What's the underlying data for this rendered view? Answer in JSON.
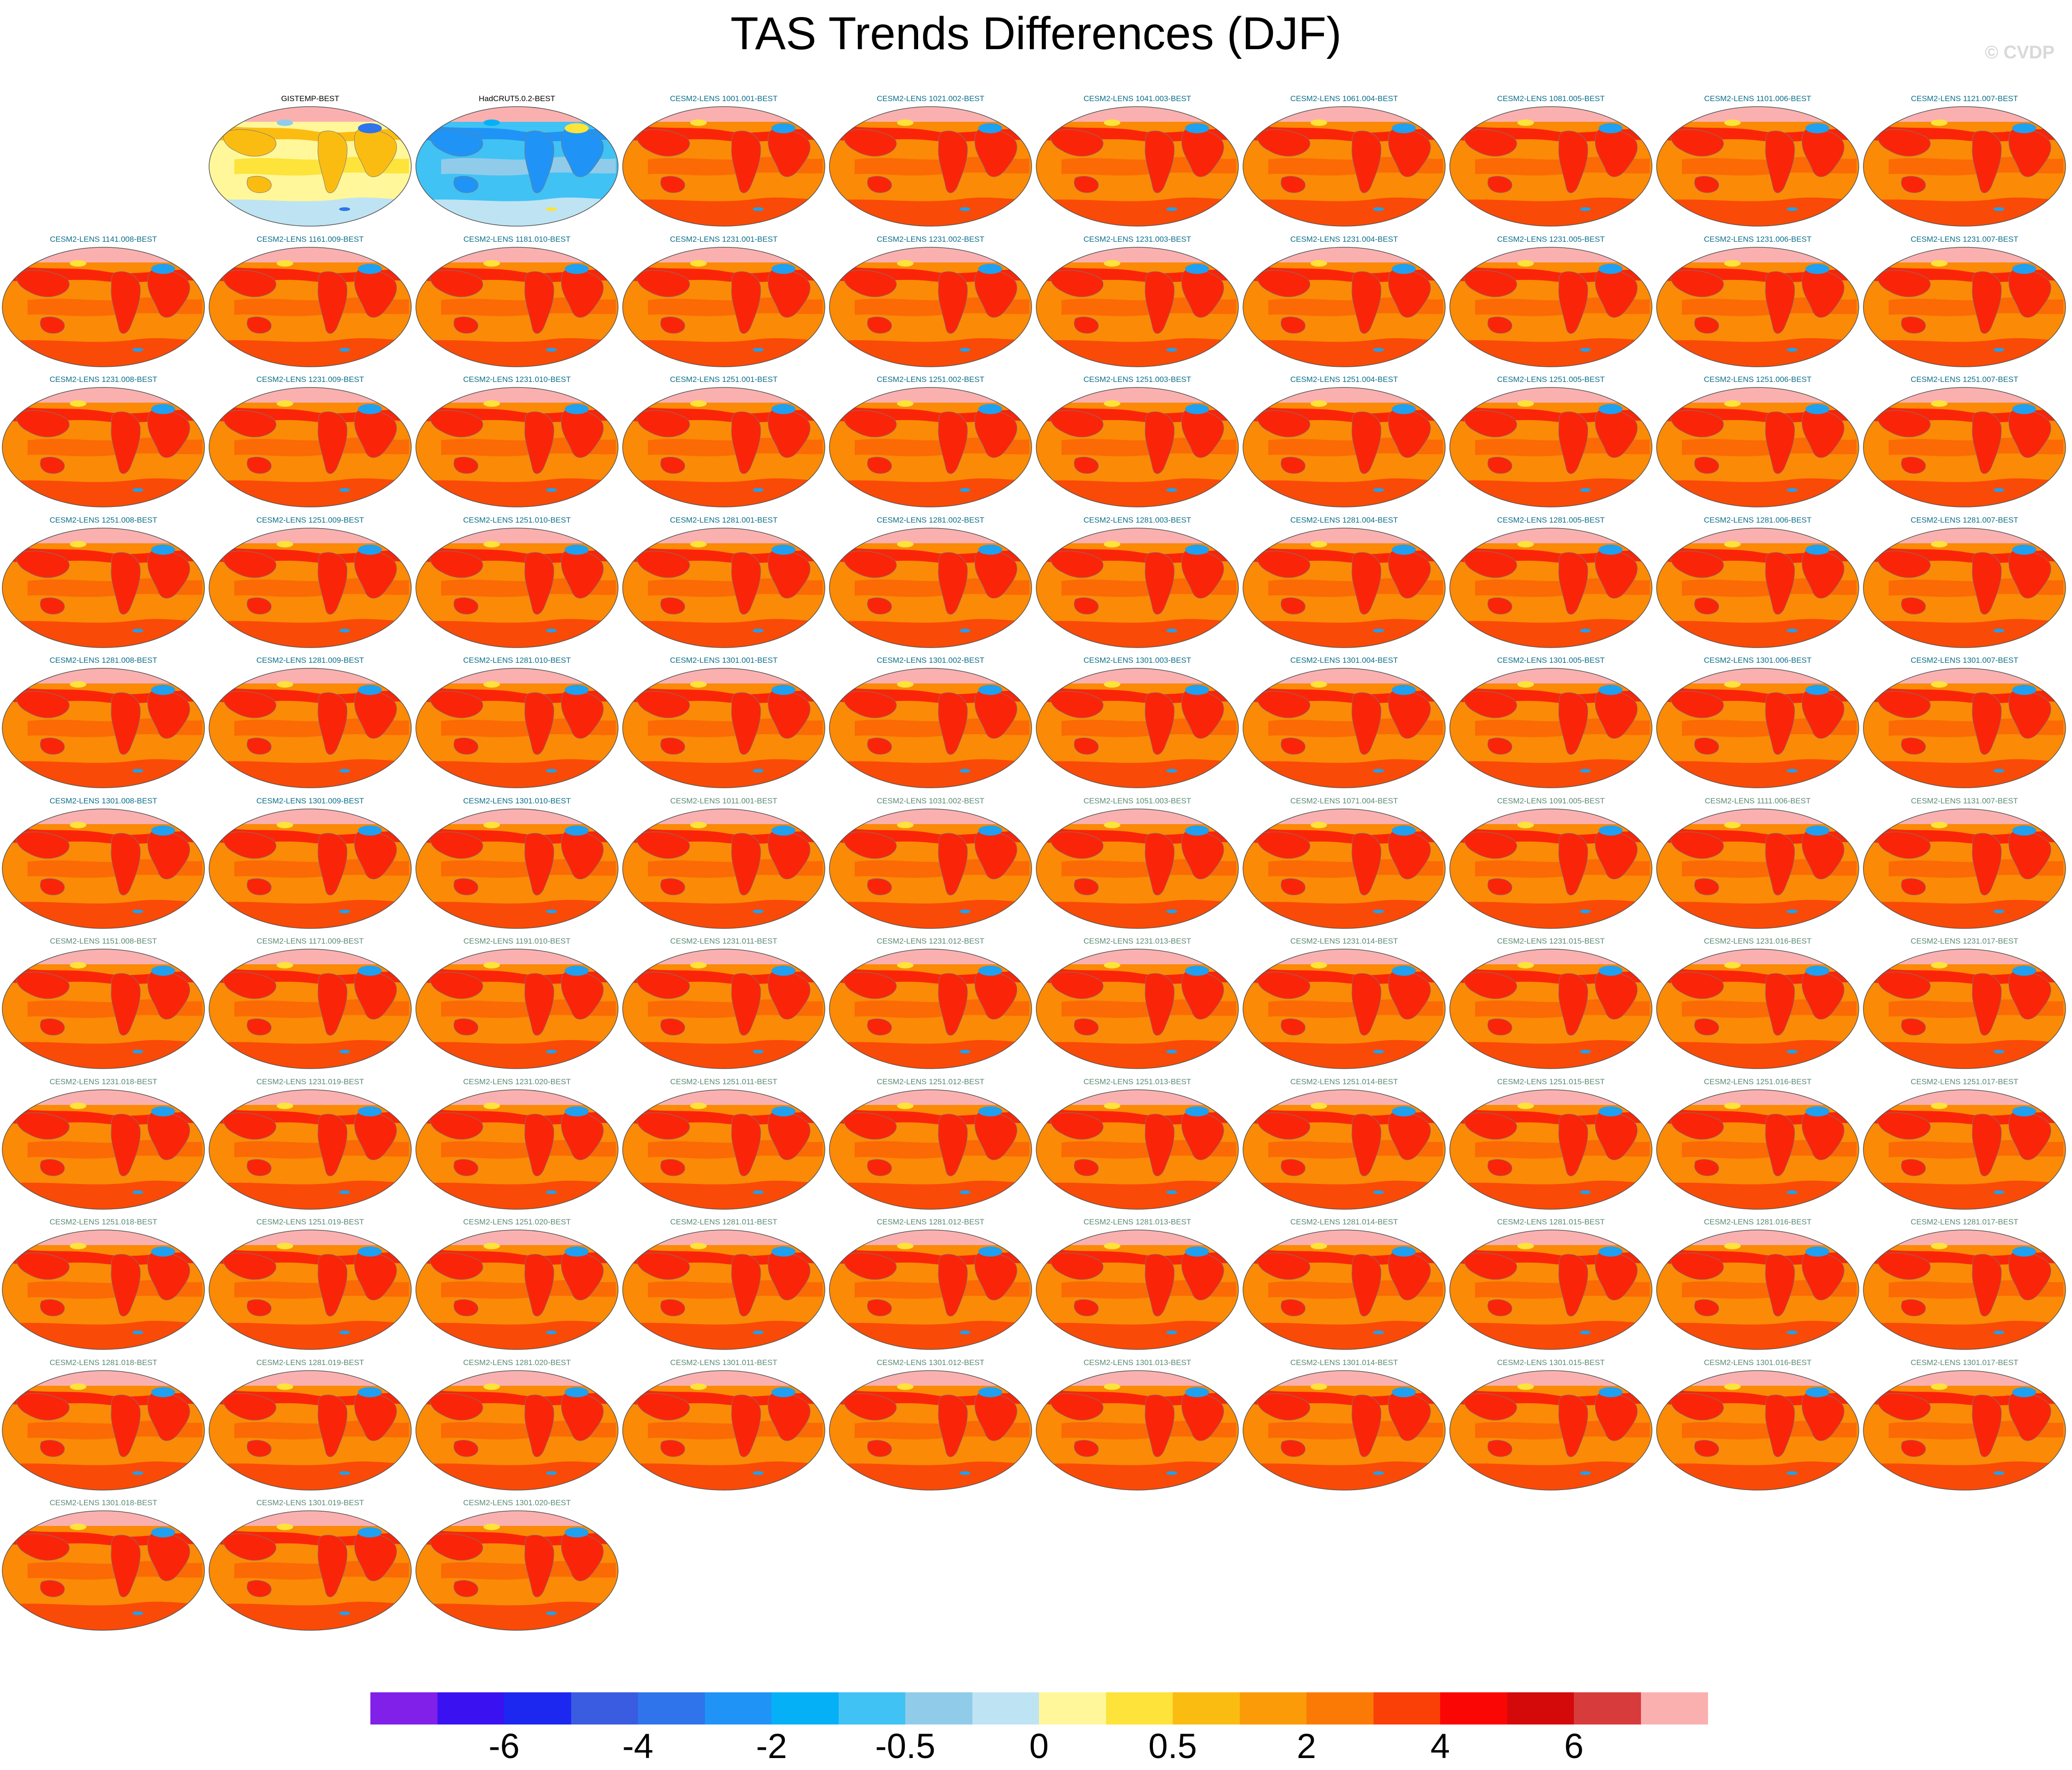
{
  "title": "TAS Trends Differences (DJF)",
  "copyright": "© CVDP",
  "colorbar": {
    "colors": [
      "#8020e8",
      "#3a12f2",
      "#1c28f0",
      "#3a5ce0",
      "#2f74ea",
      "#1f94f6",
      "#06b0f6",
      "#40c2f4",
      "#90ccea",
      "#bee3f3",
      "#fff799",
      "#fde33a",
      "#fbbc12",
      "#fb9b08",
      "#fb7a05",
      "#fa4007",
      "#fa0605",
      "#d40a0a",
      "#d83b3b",
      "#fbb0b0"
    ],
    "tick_labels": [
      "-6",
      "-4",
      "-2",
      "-0.5",
      "0",
      "0.5",
      "2",
      "4",
      "6"
    ]
  },
  "panels": [
    {
      "label": "GISTEMP-BEST",
      "style": "obs",
      "palette": "mixed"
    },
    {
      "label": "HadCRUT5.0.2-BEST",
      "style": "obs",
      "palette": "cool"
    },
    {
      "label": "CESM2-LENS 1001.001-BEST",
      "style": "teal",
      "palette": "warm"
    },
    {
      "label": "CESM2-LENS 1021.002-BEST",
      "style": "teal",
      "palette": "warm"
    },
    {
      "label": "CESM2-LENS 1041.003-BEST",
      "style": "teal",
      "palette": "warm"
    },
    {
      "label": "CESM2-LENS 1061.004-BEST",
      "style": "teal",
      "palette": "warm"
    },
    {
      "label": "CESM2-LENS 1081.005-BEST",
      "style": "teal",
      "palette": "warm"
    },
    {
      "label": "CESM2-LENS 1101.006-BEST",
      "style": "teal",
      "palette": "warm"
    },
    {
      "label": "CESM2-LENS 1121.007-BEST",
      "style": "teal",
      "palette": "warm"
    },
    {
      "label": "CESM2-LENS 1141.008-BEST",
      "style": "teal",
      "palette": "warm"
    },
    {
      "label": "CESM2-LENS 1161.009-BEST",
      "style": "teal",
      "palette": "warm"
    },
    {
      "label": "CESM2-LENS 1181.010-BEST",
      "style": "teal",
      "palette": "warm"
    },
    {
      "label": "CESM2-LENS 1231.001-BEST",
      "style": "teal",
      "palette": "warm"
    },
    {
      "label": "CESM2-LENS 1231.002-BEST",
      "style": "teal",
      "palette": "warm"
    },
    {
      "label": "CESM2-LENS 1231.003-BEST",
      "style": "teal",
      "palette": "warm"
    },
    {
      "label": "CESM2-LENS 1231.004-BEST",
      "style": "teal",
      "palette": "warm"
    },
    {
      "label": "CESM2-LENS 1231.005-BEST",
      "style": "teal",
      "palette": "warm"
    },
    {
      "label": "CESM2-LENS 1231.006-BEST",
      "style": "teal",
      "palette": "warm"
    },
    {
      "label": "CESM2-LENS 1231.007-BEST",
      "style": "teal",
      "palette": "warm"
    },
    {
      "label": "CESM2-LENS 1231.008-BEST",
      "style": "teal",
      "palette": "warm"
    },
    {
      "label": "CESM2-LENS 1231.009-BEST",
      "style": "teal",
      "palette": "warm"
    },
    {
      "label": "CESM2-LENS 1231.010-BEST",
      "style": "teal",
      "palette": "warm"
    },
    {
      "label": "CESM2-LENS 1251.001-BEST",
      "style": "teal",
      "palette": "warm"
    },
    {
      "label": "CESM2-LENS 1251.002-BEST",
      "style": "teal",
      "palette": "warm"
    },
    {
      "label": "CESM2-LENS 1251.003-BEST",
      "style": "teal",
      "palette": "warm"
    },
    {
      "label": "CESM2-LENS 1251.004-BEST",
      "style": "teal",
      "palette": "warm"
    },
    {
      "label": "CESM2-LENS 1251.005-BEST",
      "style": "teal",
      "palette": "warm"
    },
    {
      "label": "CESM2-LENS 1251.006-BEST",
      "style": "teal",
      "palette": "warm"
    },
    {
      "label": "CESM2-LENS 1251.007-BEST",
      "style": "teal",
      "palette": "warm"
    },
    {
      "label": "CESM2-LENS 1251.008-BEST",
      "style": "teal",
      "palette": "warm"
    },
    {
      "label": "CESM2-LENS 1251.009-BEST",
      "style": "teal",
      "palette": "warm"
    },
    {
      "label": "CESM2-LENS 1251.010-BEST",
      "style": "teal",
      "palette": "warm"
    },
    {
      "label": "CESM2-LENS 1281.001-BEST",
      "style": "teal",
      "palette": "warm"
    },
    {
      "label": "CESM2-LENS 1281.002-BEST",
      "style": "teal",
      "palette": "warm"
    },
    {
      "label": "CESM2-LENS 1281.003-BEST",
      "style": "teal",
      "palette": "warm"
    },
    {
      "label": "CESM2-LENS 1281.004-BEST",
      "style": "teal",
      "palette": "warm"
    },
    {
      "label": "CESM2-LENS 1281.005-BEST",
      "style": "teal",
      "palette": "warm"
    },
    {
      "label": "CESM2-LENS 1281.006-BEST",
      "style": "teal",
      "palette": "warm"
    },
    {
      "label": "CESM2-LENS 1281.007-BEST",
      "style": "teal",
      "palette": "warm"
    },
    {
      "label": "CESM2-LENS 1281.008-BEST",
      "style": "teal",
      "palette": "warm"
    },
    {
      "label": "CESM2-LENS 1281.009-BEST",
      "style": "teal",
      "palette": "warm"
    },
    {
      "label": "CESM2-LENS 1281.010-BEST",
      "style": "teal",
      "palette": "warm"
    },
    {
      "label": "CESM2-LENS 1301.001-BEST",
      "style": "teal",
      "palette": "warm"
    },
    {
      "label": "CESM2-LENS 1301.002-BEST",
      "style": "teal",
      "palette": "warm"
    },
    {
      "label": "CESM2-LENS 1301.003-BEST",
      "style": "teal",
      "palette": "warm"
    },
    {
      "label": "CESM2-LENS 1301.004-BEST",
      "style": "teal",
      "palette": "warm"
    },
    {
      "label": "CESM2-LENS 1301.005-BEST",
      "style": "teal",
      "palette": "warm"
    },
    {
      "label": "CESM2-LENS 1301.006-BEST",
      "style": "teal",
      "palette": "warm"
    },
    {
      "label": "CESM2-LENS 1301.007-BEST",
      "style": "teal",
      "palette": "warm"
    },
    {
      "label": "CESM2-LENS 1301.008-BEST",
      "style": "teal",
      "palette": "warm"
    },
    {
      "label": "CESM2-LENS 1301.009-BEST",
      "style": "teal",
      "palette": "warm"
    },
    {
      "label": "CESM2-LENS 1301.010-BEST",
      "style": "teal",
      "palette": "warm"
    },
    {
      "label": "CESM2-LENS 1011.001-BEST",
      "style": "grey",
      "palette": "warm"
    },
    {
      "label": "CESM2-LENS 1031.002-BEST",
      "style": "grey",
      "palette": "warm"
    },
    {
      "label": "CESM2-LENS 1051.003-BEST",
      "style": "grey",
      "palette": "warm"
    },
    {
      "label": "CESM2-LENS 1071.004-BEST",
      "style": "grey",
      "palette": "warm"
    },
    {
      "label": "CESM2-LENS 1091.005-BEST",
      "style": "grey",
      "palette": "warm"
    },
    {
      "label": "CESM2-LENS 1111.006-BEST",
      "style": "grey",
      "palette": "warm"
    },
    {
      "label": "CESM2-LENS 1131.007-BEST",
      "style": "grey",
      "palette": "warm"
    },
    {
      "label": "CESM2-LENS 1151.008-BEST",
      "style": "grey",
      "palette": "warm"
    },
    {
      "label": "CESM2-LENS 1171.009-BEST",
      "style": "grey",
      "palette": "warm"
    },
    {
      "label": "CESM2-LENS 1191.010-BEST",
      "style": "grey",
      "palette": "warm"
    },
    {
      "label": "CESM2-LENS 1231.011-BEST",
      "style": "grey",
      "palette": "warm"
    },
    {
      "label": "CESM2-LENS 1231.012-BEST",
      "style": "grey",
      "palette": "warm"
    },
    {
      "label": "CESM2-LENS 1231.013-BEST",
      "style": "grey",
      "palette": "warm"
    },
    {
      "label": "CESM2-LENS 1231.014-BEST",
      "style": "grey",
      "palette": "warm"
    },
    {
      "label": "CESM2-LENS 1231.015-BEST",
      "style": "grey",
      "palette": "warm"
    },
    {
      "label": "CESM2-LENS 1231.016-BEST",
      "style": "grey",
      "palette": "warm"
    },
    {
      "label": "CESM2-LENS 1231.017-BEST",
      "style": "grey",
      "palette": "warm"
    },
    {
      "label": "CESM2-LENS 1231.018-BEST",
      "style": "grey",
      "palette": "warm"
    },
    {
      "label": "CESM2-LENS 1231.019-BEST",
      "style": "grey",
      "palette": "warm"
    },
    {
      "label": "CESM2-LENS 1231.020-BEST",
      "style": "grey",
      "palette": "warm"
    },
    {
      "label": "CESM2-LENS 1251.011-BEST",
      "style": "grey",
      "palette": "warm"
    },
    {
      "label": "CESM2-LENS 1251.012-BEST",
      "style": "grey",
      "palette": "warm"
    },
    {
      "label": "CESM2-LENS 1251.013-BEST",
      "style": "grey",
      "palette": "warm"
    },
    {
      "label": "CESM2-LENS 1251.014-BEST",
      "style": "grey",
      "palette": "warm"
    },
    {
      "label": "CESM2-LENS 1251.015-BEST",
      "style": "grey",
      "palette": "warm"
    },
    {
      "label": "CESM2-LENS 1251.016-BEST",
      "style": "grey",
      "palette": "warm"
    },
    {
      "label": "CESM2-LENS 1251.017-BEST",
      "style": "grey",
      "palette": "warm"
    },
    {
      "label": "CESM2-LENS 1251.018-BEST",
      "style": "grey",
      "palette": "warm"
    },
    {
      "label": "CESM2-LENS 1251.019-BEST",
      "style": "grey",
      "palette": "warm"
    },
    {
      "label": "CESM2-LENS 1251.020-BEST",
      "style": "grey",
      "palette": "warm"
    },
    {
      "label": "CESM2-LENS 1281.011-BEST",
      "style": "grey",
      "palette": "warm"
    },
    {
      "label": "CESM2-LENS 1281.012-BEST",
      "style": "grey",
      "palette": "warm"
    },
    {
      "label": "CESM2-LENS 1281.013-BEST",
      "style": "grey",
      "palette": "warm"
    },
    {
      "label": "CESM2-LENS 1281.014-BEST",
      "style": "grey",
      "palette": "warm"
    },
    {
      "label": "CESM2-LENS 1281.015-BEST",
      "style": "grey",
      "palette": "warm"
    },
    {
      "label": "CESM2-LENS 1281.016-BEST",
      "style": "grey",
      "palette": "warm"
    },
    {
      "label": "CESM2-LENS 1281.017-BEST",
      "style": "grey",
      "palette": "warm"
    },
    {
      "label": "CESM2-LENS 1281.018-BEST",
      "style": "grey",
      "palette": "warm"
    },
    {
      "label": "CESM2-LENS 1281.019-BEST",
      "style": "grey",
      "palette": "warm"
    },
    {
      "label": "CESM2-LENS 1281.020-BEST",
      "style": "grey",
      "palette": "warm"
    },
    {
      "label": "CESM2-LENS 1301.011-BEST",
      "style": "grey",
      "palette": "warm"
    },
    {
      "label": "CESM2-LENS 1301.012-BEST",
      "style": "grey",
      "palette": "warm"
    },
    {
      "label": "CESM2-LENS 1301.013-BEST",
      "style": "grey",
      "palette": "warm"
    },
    {
      "label": "CESM2-LENS 1301.014-BEST",
      "style": "grey",
      "palette": "warm"
    },
    {
      "label": "CESM2-LENS 1301.015-BEST",
      "style": "grey",
      "palette": "warm"
    },
    {
      "label": "CESM2-LENS 1301.016-BEST",
      "style": "grey",
      "palette": "warm"
    },
    {
      "label": "CESM2-LENS 1301.017-BEST",
      "style": "grey",
      "palette": "warm"
    },
    {
      "label": "CESM2-LENS 1301.018-BEST",
      "style": "grey",
      "palette": "warm"
    },
    {
      "label": "CESM2-LENS 1301.019-BEST",
      "style": "grey",
      "palette": "warm"
    },
    {
      "label": "CESM2-LENS 1301.020-BEST",
      "style": "grey",
      "palette": "warm"
    }
  ]
}
